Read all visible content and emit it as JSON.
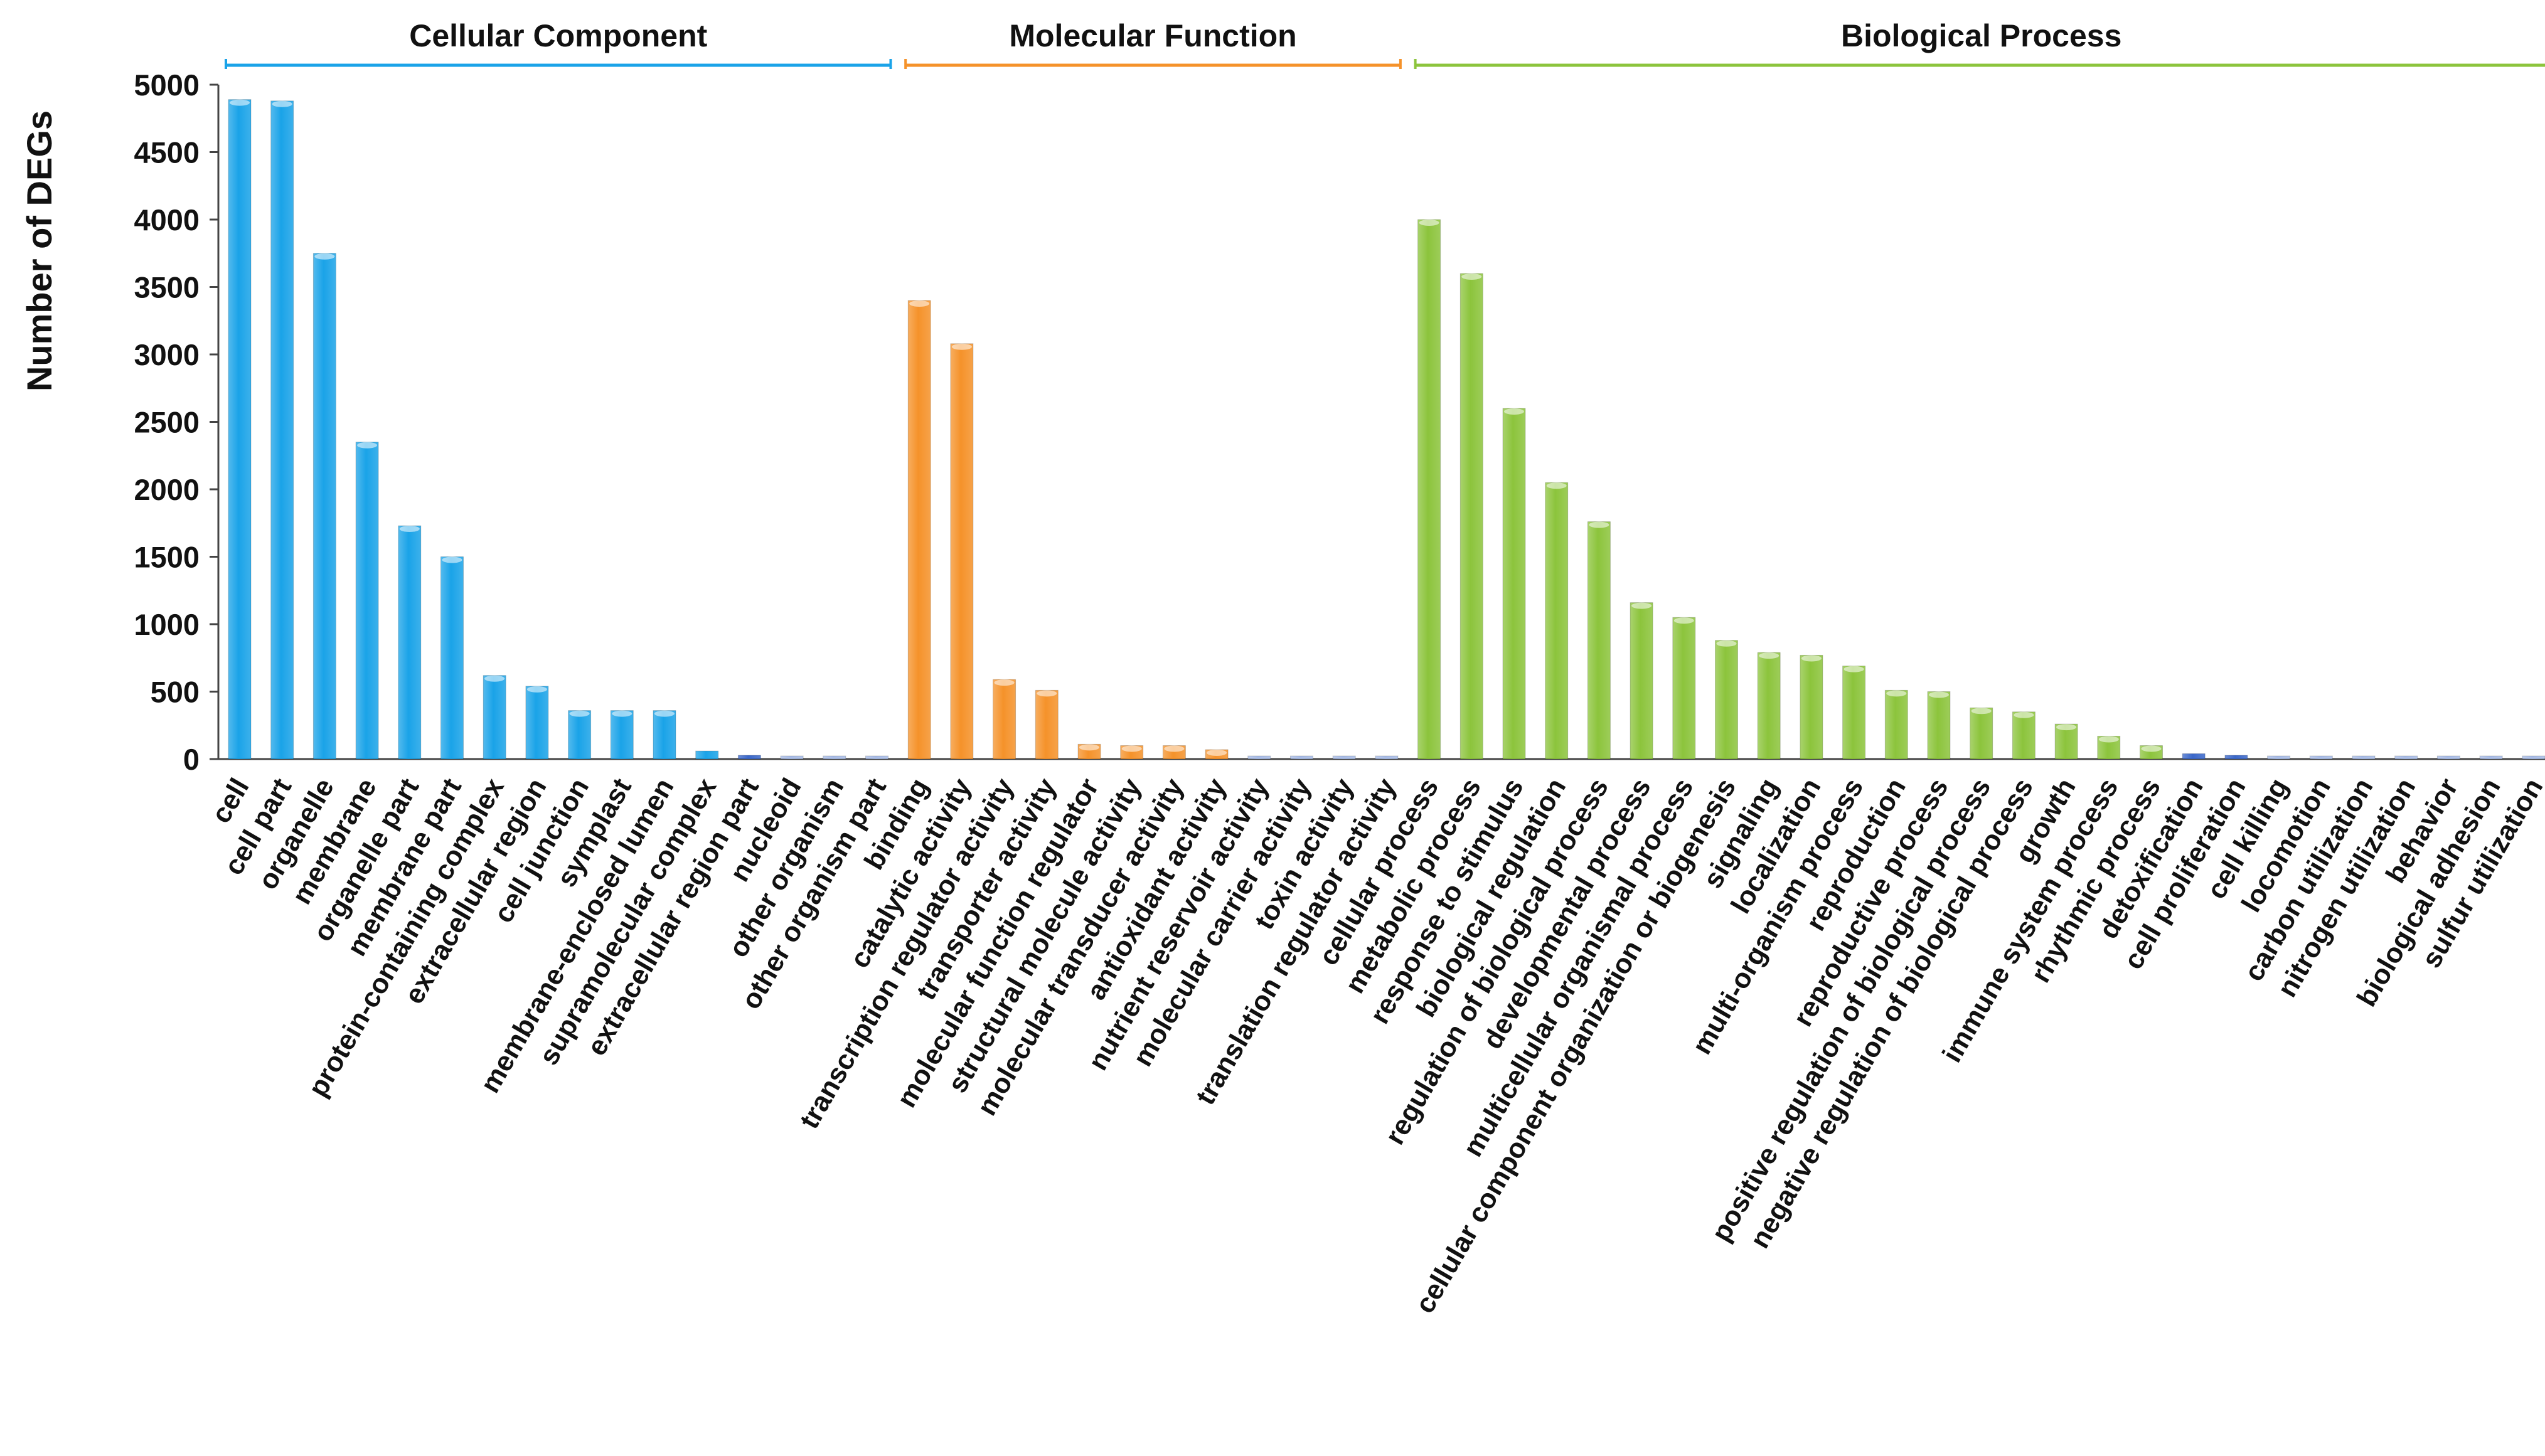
{
  "chart_data": {
    "type": "bar",
    "title": "",
    "xlabel": "",
    "ylabel": "Number of DEGs",
    "ylim": [
      0,
      5000
    ],
    "yticks": [
      0,
      500,
      1000,
      1500,
      2000,
      2500,
      3000,
      3500,
      4000,
      4500,
      5000
    ],
    "grid": false,
    "groups": [
      {
        "name": "Cellular Component",
        "color": "#1aa3e8",
        "categories": [
          "cell",
          "cell part",
          "organelle",
          "membrane",
          "organelle part",
          "membrane part",
          "protein-containing complex",
          "extracellular region",
          "cell junction",
          "symplast",
          "membrane-enclosed lumen",
          "supramolecular complex",
          "extracellular region part",
          "nucleoid",
          "other organism",
          "other organism part"
        ],
        "values": [
          4890,
          4880,
          3750,
          2350,
          1730,
          1500,
          620,
          540,
          360,
          360,
          360,
          60,
          20,
          10,
          10,
          10
        ]
      },
      {
        "name": "Molecular Function",
        "color": "#f5922a",
        "categories": [
          "binding",
          "catalytic activity",
          "transcription regulator activity",
          "transporter activity",
          "molecular function regulator",
          "structural molecule activity",
          "molecular transducer activity",
          "antioxidant activity",
          "nutrient reservoir activity",
          "molecular carrier activity",
          "toxin activity",
          "translation regulator activity"
        ],
        "values": [
          3400,
          3080,
          590,
          510,
          110,
          100,
          100,
          70,
          10,
          10,
          10,
          10
        ]
      },
      {
        "name": "Biological Process",
        "color": "#8cc43c",
        "categories": [
          "cellular process",
          "metabolic process",
          "response to stimulus",
          "biological regulation",
          "regulation of biological process",
          "developmental process",
          "multicellular organismal process",
          "cellular component organization or biogenesis",
          "signaling",
          "localization",
          "multi-organism process",
          "reproduction",
          "reproductive process",
          "positive regulation of biological process",
          "negative regulation of biological process",
          "growth",
          "immune system process",
          "rhythmic process",
          "detoxification",
          "cell proliferation",
          "cell killing",
          "locomotion",
          "carbon utilization",
          "nitrogen utilization",
          "behavior",
          "biological adhesion",
          "sulfur utilization"
        ],
        "values": [
          4000,
          3600,
          2600,
          2050,
          1760,
          1160,
          1050,
          880,
          790,
          770,
          690,
          510,
          500,
          380,
          350,
          260,
          170,
          100,
          40,
          25,
          10,
          10,
          10,
          10,
          10,
          10,
          10
        ]
      }
    ]
  },
  "colors": {
    "small_bar": "#3a67c9",
    "tiny_bar": "#a9bde8",
    "axis": "#444444"
  }
}
